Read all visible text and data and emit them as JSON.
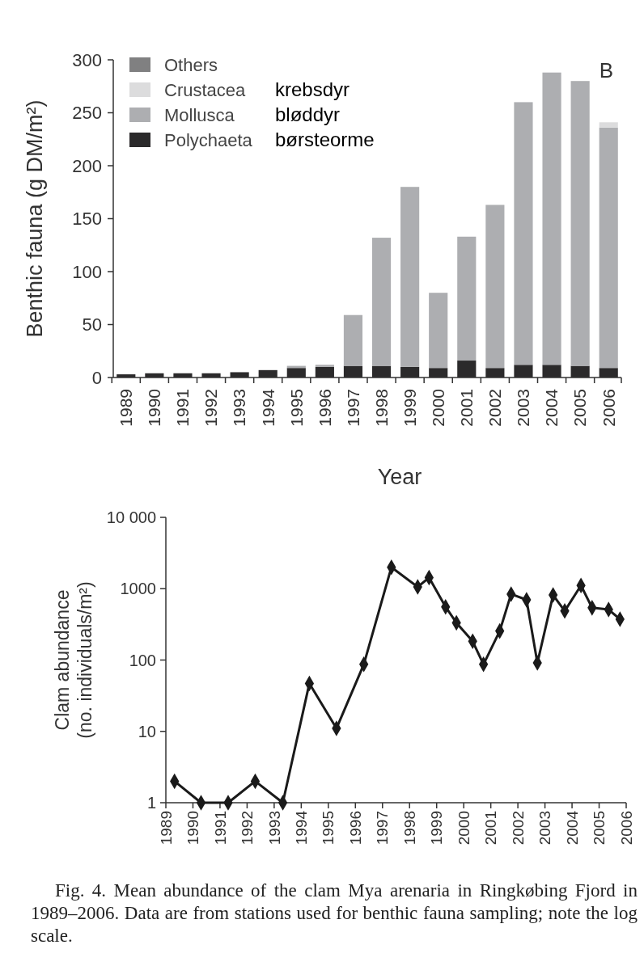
{
  "chart_data": [
    {
      "type": "bar",
      "stacked": true,
      "xlabel": "Year",
      "ylabel": "Benthic fauna (g DM/m²)",
      "categories": [
        "1989",
        "1990",
        "1991",
        "1992",
        "1993",
        "1994",
        "1995",
        "1996",
        "1997",
        "1998",
        "1999",
        "2000",
        "2001",
        "2002",
        "2003",
        "2004",
        "2005",
        "2006"
      ],
      "series": [
        {
          "name": "Polychaeta",
          "color": "#2b2a2b",
          "values": [
            3,
            4,
            4,
            4,
            5,
            7,
            9,
            10,
            11,
            11,
            10,
            9,
            16,
            9,
            12,
            12,
            11,
            9
          ]
        },
        {
          "name": "Mollusca",
          "color": "#adaeb1",
          "values": [
            0,
            0,
            0,
            null,
            0,
            null,
            2,
            2,
            48,
            121,
            170,
            71,
            117,
            154,
            248,
            276,
            269,
            227
          ]
        },
        {
          "name": "Crustacea",
          "color": "#dcdcdd",
          "values": [
            0,
            0,
            0,
            0,
            0,
            0,
            0,
            null,
            0,
            0,
            0,
            0,
            0,
            0,
            0,
            0,
            0,
            5
          ]
        },
        {
          "name": "Others",
          "color": "#808081",
          "values": [
            0,
            0,
            0,
            0,
            0,
            0,
            0,
            0,
            0,
            0,
            0,
            0,
            0,
            0,
            0,
            0,
            0,
            0
          ]
        }
      ],
      "ylim": [
        0,
        300
      ],
      "yticks": [
        0,
        50,
        100,
        150,
        200,
        250,
        300
      ],
      "legend": "top left",
      "annotations": [
        "B",
        "krebsdyr",
        "bløddyr",
        "børsteorme"
      ]
    },
    {
      "type": "line",
      "log": "y",
      "marker": "diamond",
      "line_style": "solid",
      "ylabel": "Clam abundance\n(no. individuals/m²)",
      "x": [
        1989.32,
        1990.3,
        1991.3,
        1992.3,
        1993.32,
        1994.3,
        1995.3,
        1996.31,
        1997.33,
        1998.3,
        1998.72,
        1999.33,
        1999.73,
        2000.33,
        2000.73,
        2001.33,
        2001.75,
        2002.32,
        2002.72,
        2003.3,
        2003.73,
        2004.33,
        2004.74,
        2005.35,
        2005.77
      ],
      "series": [
        {
          "color": "#1a1a1a",
          "values": [
            2,
            1,
            1,
            2,
            1,
            47,
            11,
            87,
            2000,
            1060,
            1430,
            557,
            333,
            183,
            87,
            255,
            840,
            698,
            91,
            815,
            487,
            1110,
            540,
            510,
            373
          ]
        }
      ],
      "xlim": [
        1989,
        2006
      ],
      "xticks": [
        1989,
        1990,
        1991,
        1992,
        1993,
        1994,
        1995,
        1996,
        1997,
        1998,
        1999,
        2000,
        2001,
        2002,
        2003,
        2004,
        2005,
        2006
      ],
      "ylim": [
        1,
        10000
      ],
      "yticks": [
        1,
        10,
        100,
        1000,
        {
          "value": 10000,
          "label": "10 000"
        }
      ],
      "annotations": [
        "Fig. 4. Mean abundance of the clam Mya arenaria in Ringkøbing Fjord in 1989–2006. Data are from stations used for benthic fauna sampling; note the log scale."
      ]
    }
  ]
}
